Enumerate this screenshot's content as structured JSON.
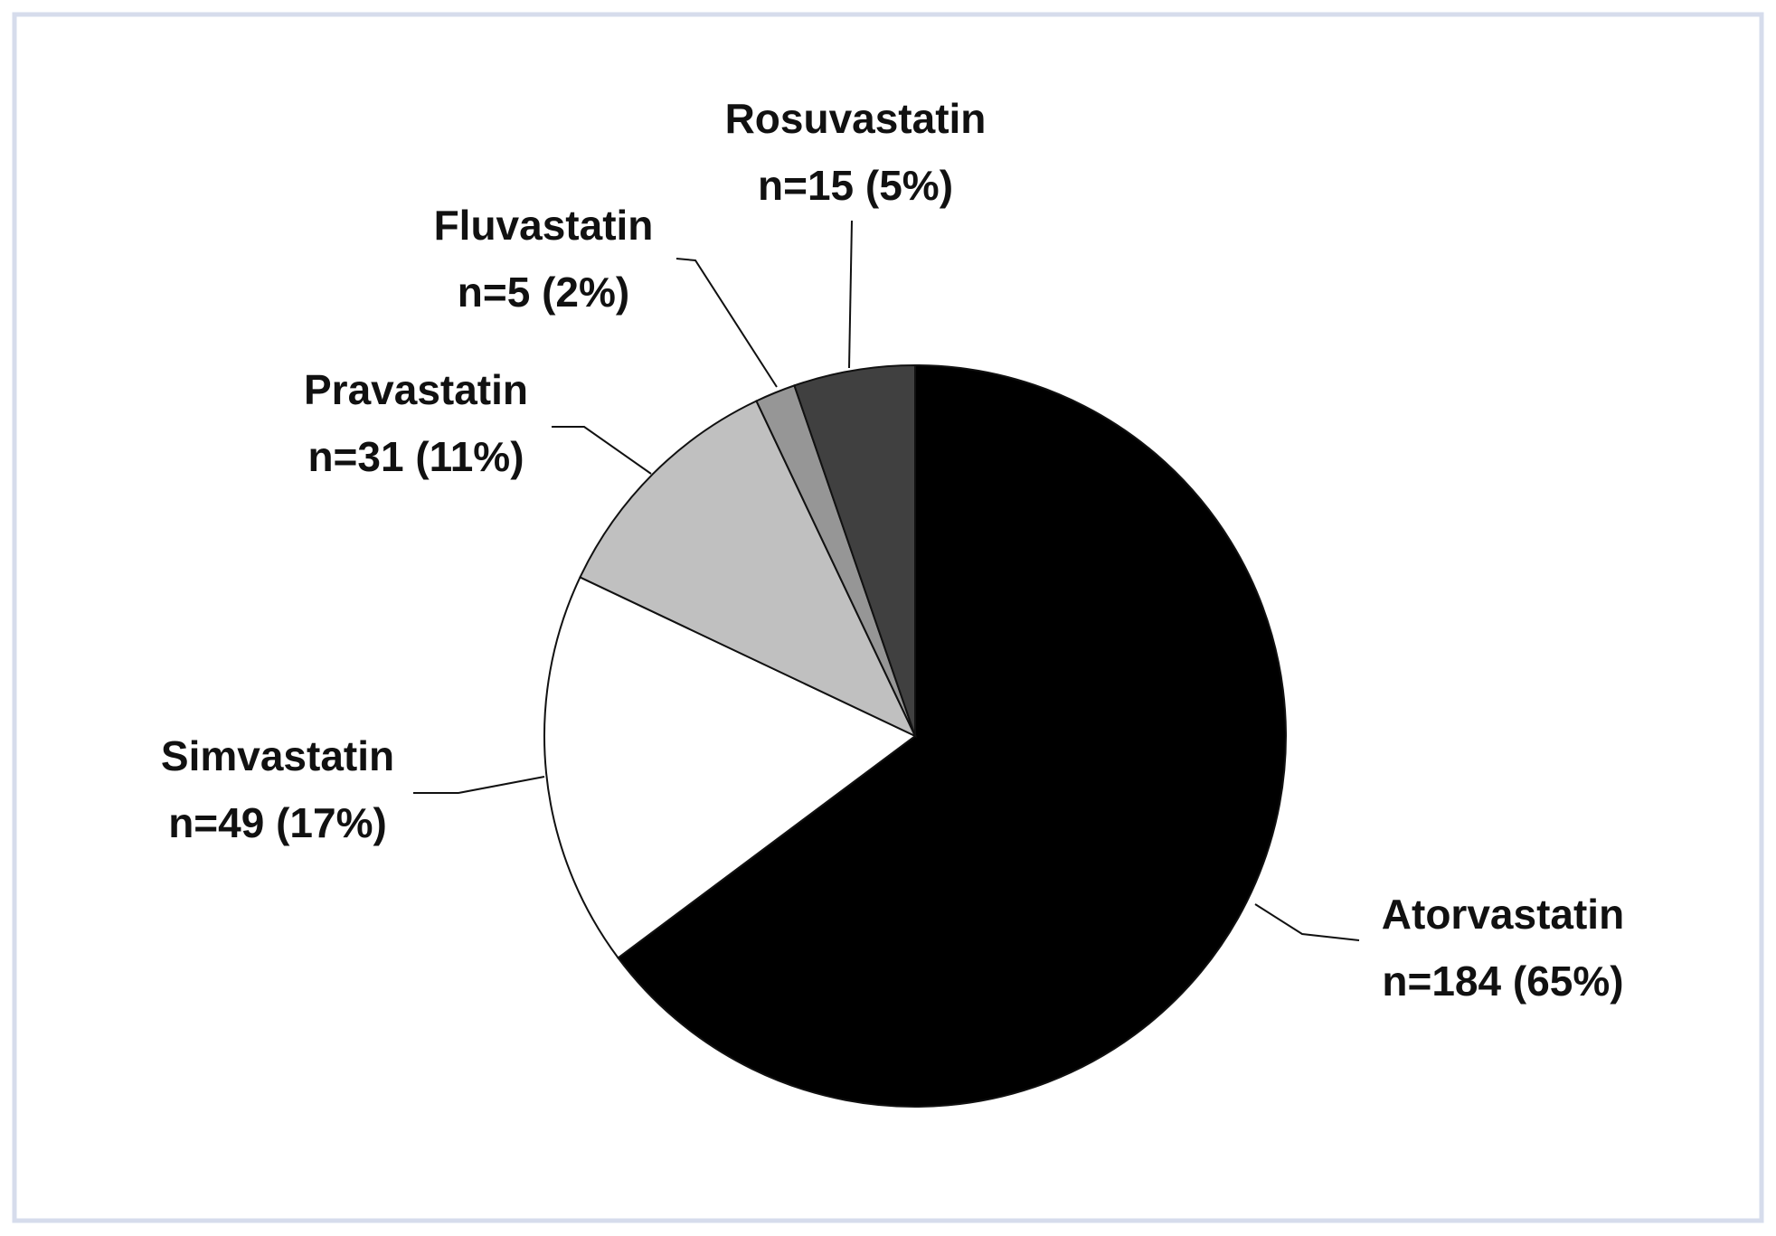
{
  "chart_data": {
    "type": "pie",
    "categories": [
      "Atorvastatin",
      "Simvastatin",
      "Pravastatin",
      "Fluvastatin",
      "Rosuvastatin"
    ],
    "values": [
      184,
      49,
      31,
      5,
      15
    ],
    "value_labels": [
      "n=184 (65%)",
      "n=49 (17%)",
      "n=31 (11%)",
      "n=5 (2%)",
      "n=15 (5%)"
    ],
    "colors": [
      "#000000",
      "#ffffff",
      "#c0c0c0",
      "#969696",
      "#404040"
    ]
  }
}
